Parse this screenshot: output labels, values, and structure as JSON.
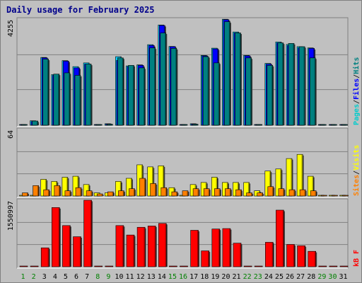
{
  "chart_data": {
    "type": "bar",
    "title": "Daily usage for February 2025",
    "categories": [
      "1",
      "2",
      "3",
      "4",
      "5",
      "6",
      "7",
      "8",
      "9",
      "10",
      "11",
      "12",
      "13",
      "14",
      "15",
      "16",
      "17",
      "18",
      "19",
      "20",
      "21",
      "22",
      "23",
      "24",
      "25",
      "26",
      "27",
      "28",
      "29",
      "30",
      "31"
    ],
    "weekend_days": [
      "1",
      "2",
      "8",
      "9",
      "15",
      "16",
      "22",
      "23",
      "29",
      "30"
    ],
    "grid": true,
    "colors": {
      "pages": "#008080",
      "files": "#0000ff",
      "hits": "#00ccff",
      "visits": "#ffff00",
      "sites": "#ff8000",
      "kbytes": "#ff0000",
      "title": "#00008b",
      "weekday_tick": "#000000",
      "weekend_tick": "#008000"
    },
    "panels": [
      {
        "id": "pages-files-hits",
        "ymax_label": "4255",
        "ymax": 4255,
        "legend": [
          {
            "text": "Pages",
            "color": "#00cccc"
          },
          {
            "text": "Files",
            "color": "#0000ff"
          },
          {
            "text": "Hits",
            "color": "#008080"
          }
        ],
        "series": [
          {
            "name": "Hits",
            "color": "#00ccff",
            "values": [
              0,
              180,
              2720,
              2030,
              2590,
              2350,
              2500,
              0,
              60,
              2750,
              2380,
              2420,
              3230,
              4020,
              3160,
              0,
              60,
              2800,
              3090,
              4250,
              3740,
              2800,
              0,
              2480,
              3340,
              3240,
              3150,
              3100,
              0,
              0,
              0
            ]
          },
          {
            "name": "Files",
            "color": "#0000ff",
            "values": [
              0,
              150,
              2700,
              2000,
              2570,
              2300,
              2450,
              0,
              50,
              2600,
              2350,
              2400,
              3200,
              4000,
              3150,
              0,
              50,
              2780,
              3060,
              4230,
              3700,
              2780,
              0,
              2450,
              3300,
              3200,
              3100,
              3080,
              0,
              0,
              0
            ]
          },
          {
            "name": "Pages",
            "color": "#008080",
            "values": [
              0,
              170,
              2650,
              2050,
              2100,
              2000,
              2450,
              0,
              40,
              2700,
              2400,
              2300,
              3100,
              3700,
              3080,
              0,
              40,
              2750,
              2500,
              4150,
              3700,
              2700,
              0,
              2400,
              3300,
              3280,
              3150,
              2700,
              0,
              0,
              0
            ]
          }
        ]
      },
      {
        "id": "visits-sites",
        "ymax_label": "64",
        "ymax": 64,
        "legend": [
          {
            "text": "Sites",
            "color": "#ff8000"
          },
          {
            "text": "Visits",
            "color": "#ffff00"
          }
        ],
        "series": [
          {
            "name": "Sites",
            "color": "#ff8000",
            "values": [
              3,
              10,
              6,
              10,
              5,
              8,
              5,
              2,
              4,
              5,
              7,
              17,
              12,
              8,
              4,
              5,
              7,
              7,
              7,
              7,
              6,
              3,
              3,
              9,
              7,
              6,
              6,
              5,
              0,
              0,
              0
            ]
          },
          {
            "name": "Visits",
            "color": "#ffff00",
            "values": [
              0,
              0,
              16,
              14,
              18,
              19,
              11,
              3,
              3,
              14,
              17,
              30,
              28,
              29,
              8,
              0,
              11,
              13,
              18,
              13,
              13,
              13,
              5,
              24,
              26,
              36,
              40,
              19,
              0,
              0,
              0
            ]
          }
        ]
      },
      {
        "id": "kbytes",
        "ymax_label": "1550997",
        "ymax": 1550997,
        "legend": [
          {
            "text": "kB F",
            "color": "#ff0000"
          }
        ],
        "series": [
          {
            "name": "kB F",
            "color": "#ff0000",
            "values": [
              0,
              0,
              440000,
              1380000,
              960000,
              700000,
              1550997,
              0,
              0,
              960000,
              740000,
              920000,
              950000,
              1010000,
              0,
              0,
              850000,
              370000,
              880000,
              890000,
              550000,
              0,
              0,
              570000,
              1320000,
              520000,
              490000,
              360000,
              0,
              0,
              0
            ]
          }
        ]
      }
    ]
  }
}
